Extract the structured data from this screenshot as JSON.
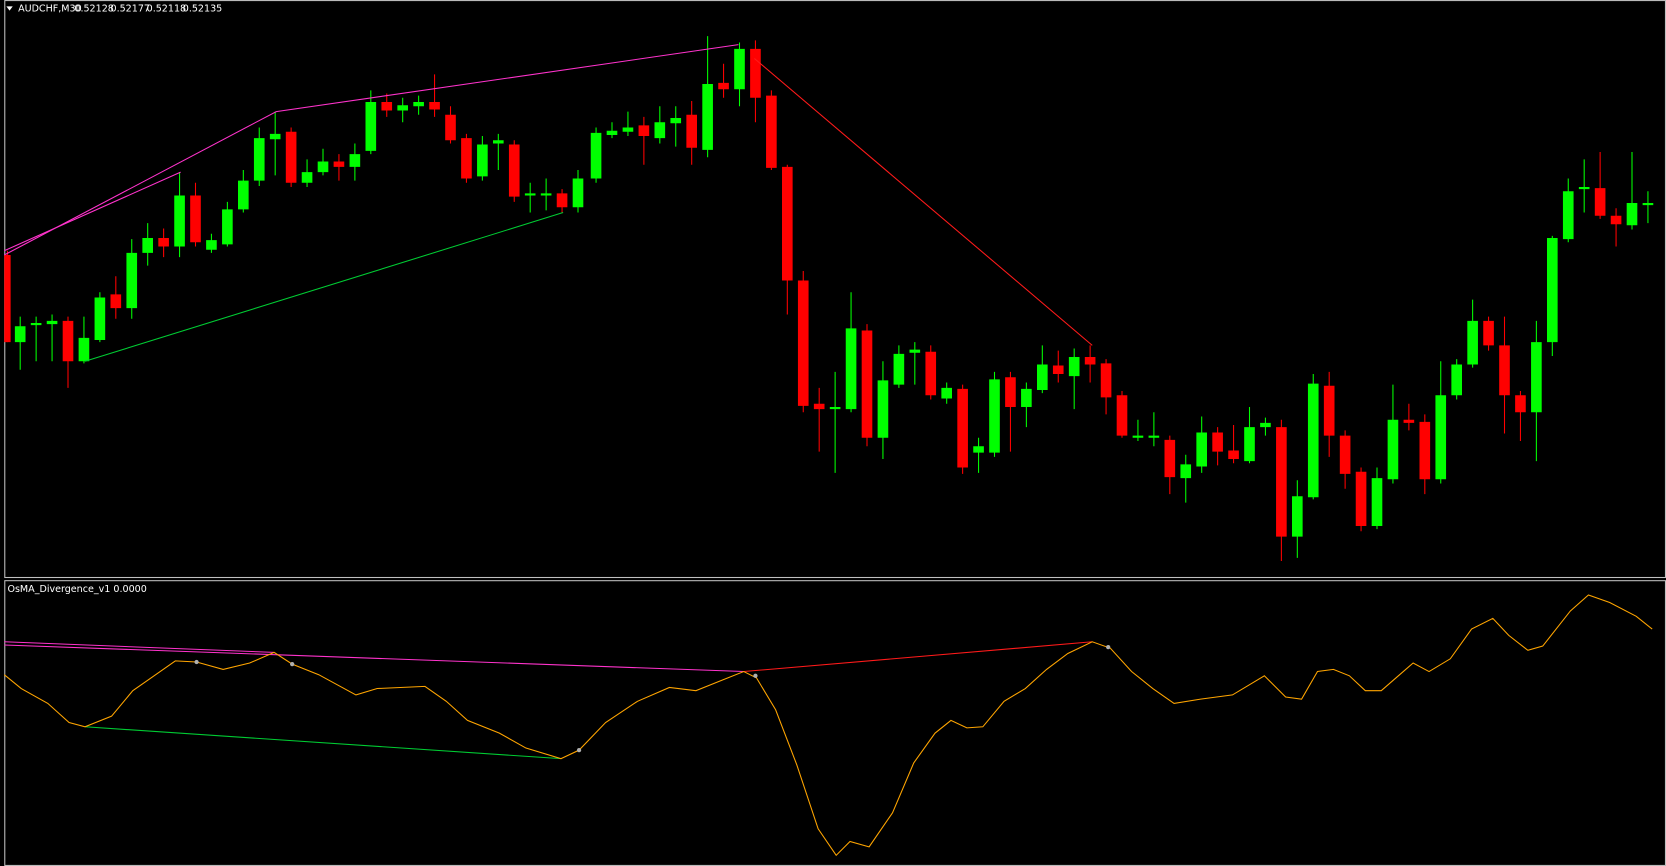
{
  "header": {
    "symbol": "AUDCHF,M30",
    "prices": [
      "0.52128",
      "0.52177",
      "0.52118",
      "0.52135"
    ]
  },
  "indicator": {
    "label": "OsMA_Divergence_v1 0.0000"
  }
}
